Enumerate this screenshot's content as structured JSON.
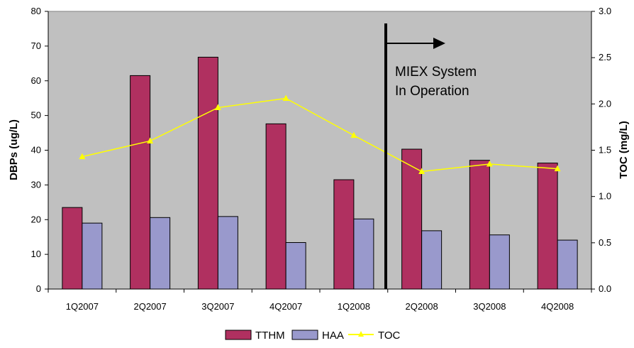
{
  "chart_data": {
    "type": "bar",
    "categories": [
      "1Q2007",
      "2Q2007",
      "3Q2007",
      "4Q2007",
      "1Q2008",
      "2Q2008",
      "3Q2008",
      "4Q2008"
    ],
    "series": [
      {
        "name": "TTHM",
        "type": "bar",
        "axis": "left",
        "color": "#B03060",
        "values": [
          23.5,
          61.5,
          66.8,
          47.6,
          31.5,
          40.3,
          37.1,
          36.3
        ]
      },
      {
        "name": "HAA",
        "type": "bar",
        "axis": "left",
        "color": "#9999CC",
        "values": [
          19.0,
          20.6,
          20.9,
          13.4,
          20.2,
          16.8,
          15.6,
          14.1
        ]
      },
      {
        "name": "TOC",
        "type": "line",
        "axis": "right",
        "color": "#FFFF00",
        "marker": "triangle",
        "values": [
          1.43,
          1.6,
          1.96,
          2.06,
          1.66,
          1.27,
          1.35,
          1.3
        ]
      }
    ],
    "ylabel": "DBPs (ug/L)",
    "y2label": "TOC (mg/L)",
    "ylim": [
      0,
      80
    ],
    "y2lim": [
      0,
      3.0
    ],
    "yticks": [
      "0",
      "10",
      "20",
      "30",
      "40",
      "50",
      "60",
      "70",
      "80"
    ],
    "y2ticks": [
      "0.0",
      "0.5",
      "1.0",
      "1.5",
      "2.0",
      "2.5",
      "3.0"
    ],
    "grid": false,
    "plot_background": "#C0C0C0",
    "annotation": {
      "lines": [
        "MIEX System",
        "In Operation"
      ],
      "marker": "vertical line with right arrow between 1Q2008 and 2Q2008"
    },
    "legend": {
      "position": "bottom",
      "items": [
        "TTHM",
        "HAA",
        "TOC"
      ]
    }
  }
}
